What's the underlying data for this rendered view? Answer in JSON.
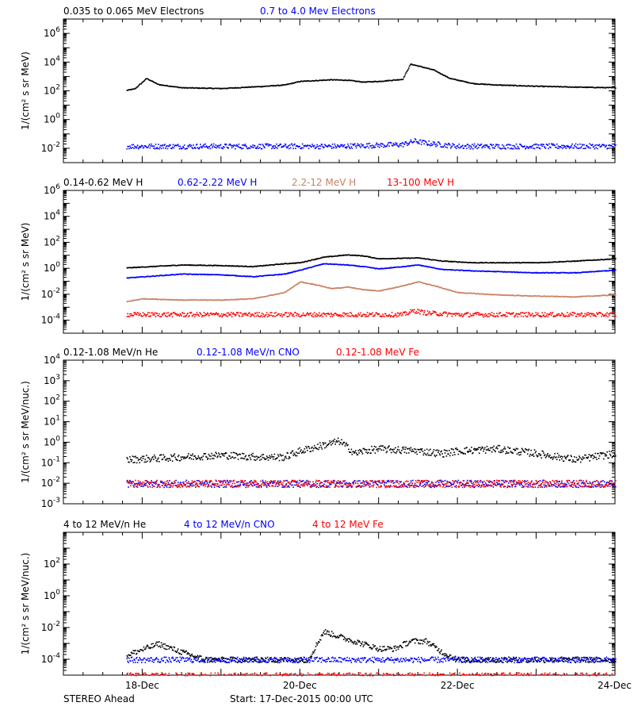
{
  "footer": {
    "left": "STEREO Ahead",
    "center": "Start: 17-Dec-2015 00:00 UTC"
  },
  "x_axis": {
    "tick_labels": [
      "18-Dec",
      "20-Dec",
      "22-Dec",
      "24-Dec"
    ],
    "tick_days": [
      1,
      3,
      5,
      7
    ],
    "range_days": [
      0,
      7
    ]
  },
  "chart_data": [
    {
      "type": "scatter",
      "id": "panel-electrons",
      "ylabel": "1/(cm² s sr MeV)",
      "yscale": "log",
      "ylim_exp": [
        -3,
        7
      ],
      "ytick_exps": [
        -2,
        0,
        2,
        4,
        6
      ],
      "legend": "top-left",
      "series": [
        {
          "name": "0.035 to 0.065 MeV Electrons",
          "color": "#000000",
          "x_days": [
            0.8,
            0.9,
            1.05,
            1.2,
            1.5,
            2.0,
            2.5,
            2.8,
            3.0,
            3.4,
            3.6,
            3.8,
            4.0,
            4.3,
            4.4,
            4.55,
            4.7,
            4.9,
            5.2,
            5.5,
            6.0,
            6.5,
            7.0
          ],
          "y": [
            120,
            150,
            800,
            300,
            180,
            160,
            220,
            280,
            500,
            650,
            600,
            450,
            500,
            700,
            8000,
            5000,
            3000,
            800,
            350,
            280,
            230,
            200,
            180
          ]
        },
        {
          "name": "0.7 to 4.0 Mev Electrons",
          "color": "#0000ff",
          "x_days": [
            0.8,
            2.0,
            3.5,
            4.3,
            4.45,
            4.6,
            5.0,
            6.0,
            7.0
          ],
          "y": [
            0.015,
            0.015,
            0.015,
            0.02,
            0.035,
            0.025,
            0.015,
            0.015,
            0.015
          ]
        }
      ]
    },
    {
      "type": "scatter",
      "id": "panel-protons",
      "ylabel": "1/(cm² s sr MeV)",
      "yscale": "log",
      "ylim_exp": [
        -5,
        6
      ],
      "ytick_exps": [
        -4,
        -2,
        0,
        2,
        4,
        6
      ],
      "legend": "top-left",
      "series": [
        {
          "name": "0.14-0.62 MeV H",
          "color": "#000000",
          "x_days": [
            0.8,
            1.5,
            2.0,
            2.4,
            2.8,
            3.0,
            3.3,
            3.6,
            3.8,
            4.0,
            4.5,
            4.8,
            5.2,
            6.0,
            6.5,
            7.0
          ],
          "y": [
            1.2,
            2.0,
            1.8,
            1.5,
            2.5,
            3.0,
            8.0,
            12,
            10,
            6.0,
            7.0,
            4.0,
            3.0,
            3.0,
            4.0,
            6.0
          ]
        },
        {
          "name": "0.62-2.22 MeV H",
          "color": "#0000ff",
          "x_days": [
            0.8,
            1.5,
            2.0,
            2.4,
            2.8,
            3.0,
            3.3,
            3.6,
            3.8,
            4.0,
            4.3,
            4.5,
            4.8,
            5.2,
            6.0,
            6.5,
            7.0
          ],
          "y": [
            0.2,
            0.4,
            0.35,
            0.25,
            0.4,
            0.8,
            2.5,
            2.0,
            1.5,
            1.0,
            1.5,
            2.0,
            0.9,
            0.7,
            0.5,
            0.5,
            0.8
          ]
        },
        {
          "name": "2.2-12 MeV H",
          "color": "#c88264",
          "x_days": [
            0.8,
            1.0,
            1.5,
            2.0,
            2.4,
            2.8,
            3.0,
            3.2,
            3.4,
            3.6,
            3.8,
            4.0,
            4.3,
            4.5,
            4.7,
            5.0,
            5.5,
            6.0,
            6.5,
            7.0
          ],
          "y": [
            0.003,
            0.005,
            0.004,
            0.004,
            0.005,
            0.015,
            0.1,
            0.06,
            0.03,
            0.04,
            0.025,
            0.02,
            0.05,
            0.1,
            0.05,
            0.015,
            0.01,
            0.008,
            0.007,
            0.01
          ]
        },
        {
          "name": "13-100 MeV H",
          "color": "#ff0000",
          "x_days": [
            0.8,
            2.0,
            3.5,
            4.3,
            4.45,
            4.6,
            5.0,
            6.0,
            7.0
          ],
          "y": [
            0.0003,
            0.0003,
            0.0003,
            0.0003,
            0.0006,
            0.0004,
            0.0003,
            0.0003,
            0.0003
          ]
        }
      ]
    },
    {
      "type": "scatter",
      "id": "panel-ions-low",
      "ylabel": "1/(cm² s sr MeV/nuc.)",
      "yscale": "log",
      "ylim_exp": [
        -3,
        4
      ],
      "ytick_exps": [
        -3,
        -2,
        -1,
        0,
        1,
        2,
        3,
        4
      ],
      "legend": "top-left",
      "series": [
        {
          "name": "0.12-1.08 MeV/n He",
          "color": "#000000",
          "x_days": [
            0.8,
            1.5,
            2.0,
            2.5,
            2.8,
            3.0,
            3.5,
            3.7,
            3.8,
            4.0,
            4.5,
            4.8,
            5.0,
            5.5,
            6.0,
            6.5,
            7.0
          ],
          "y": [
            0.15,
            0.2,
            0.25,
            0.2,
            0.2,
            0.4,
            1.2,
            0.3,
            0.4,
            0.5,
            0.4,
            0.3,
            0.4,
            0.5,
            0.3,
            0.15,
            0.3
          ]
        },
        {
          "name": "0.12-1.08 MeV/n CNO",
          "color": "#0000ff",
          "x_days": [
            0.8,
            7.0
          ],
          "y": [
            0.01,
            0.01
          ]
        },
        {
          "name": "0.12-1.08 MeV Fe",
          "color": "#ff0000",
          "x_days": [
            0.8,
            7.0
          ],
          "y": [
            0.01,
            0.01
          ]
        }
      ]
    },
    {
      "type": "scatter",
      "id": "panel-ions-high",
      "ylabel": "1/(cm² s sr MeV/nuc.)",
      "yscale": "log",
      "ylim_exp": [
        -5,
        4
      ],
      "ytick_exps": [
        -4,
        -2,
        0,
        2
      ],
      "legend": "top-left",
      "series": [
        {
          "name": "4 to 12 MeV/n He",
          "color": "#000000",
          "x_days": [
            0.8,
            1.2,
            1.5,
            1.8,
            2.5,
            3.1,
            3.3,
            3.6,
            3.8,
            4.0,
            4.2,
            4.4,
            4.6,
            4.8,
            5.0,
            5.5,
            6.0,
            7.0
          ],
          "y": [
            0.0002,
            0.001,
            0.0003,
            0.0001,
            0.0001,
            0.0001,
            0.006,
            0.002,
            0.001,
            0.0005,
            0.0005,
            0.0015,
            0.0015,
            0.0003,
            0.0001,
            0.0001,
            0.0001,
            0.0001
          ]
        },
        {
          "name": "4 to 12 MeV/n CNO",
          "color": "#0000ff",
          "x_days": [
            0.8,
            7.0
          ],
          "y": [
            0.0001,
            0.0001
          ]
        },
        {
          "name": "4 to 12 MeV Fe",
          "color": "#ff0000",
          "x_days": [
            0.8,
            7.0
          ],
          "y": [
            1e-05,
            1e-05
          ]
        }
      ]
    }
  ]
}
